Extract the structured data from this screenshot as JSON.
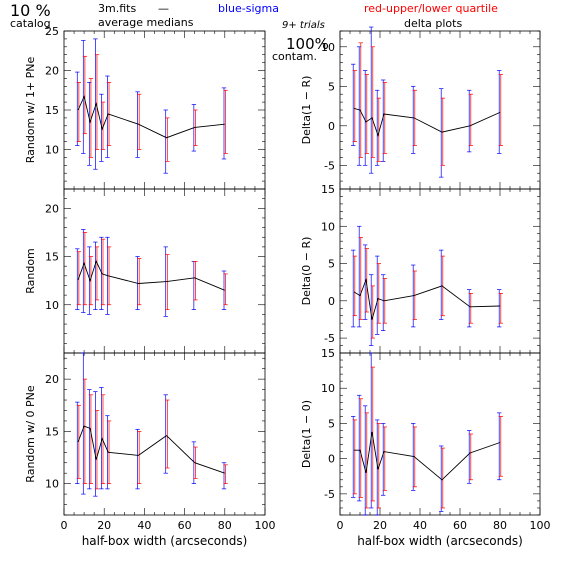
{
  "header": {
    "percent": "10 %",
    "catalog": "catalog",
    "file": "3m.fits",
    "dash": "—",
    "average_medians": "average medians",
    "blue_sigma": "blue-sigma",
    "red_quartile": "red-upper/lower quartile",
    "trials": "9+ trials",
    "delta_plots": "delta plots",
    "contam_pct": "100%",
    "contam": "contam."
  },
  "colors": {
    "line": "#000000",
    "sigma": "#0000ff",
    "quartile": "#ff0000"
  },
  "chart_data": [
    {
      "type": "line",
      "panel": "left-top",
      "xlabel": "",
      "ylabel": "Random w/ 1+ PNe",
      "xlim": [
        0,
        100
      ],
      "ylim": [
        5,
        25
      ],
      "xticks": [],
      "yticks": [
        "10",
        "15",
        "20",
        "25"
      ],
      "x": [
        7,
        10,
        13,
        16,
        19,
        22,
        37,
        51,
        65,
        80
      ],
      "y": [
        15,
        16.7,
        13.5,
        15.8,
        12.6,
        14.5,
        13.2,
        11.5,
        12.8,
        13.2
      ],
      "sigma": [
        [
          10.5,
          19.8
        ],
        [
          9.5,
          23.8
        ],
        [
          8,
          18.5
        ],
        [
          7.5,
          24
        ],
        [
          8.5,
          17
        ],
        [
          9,
          19.3
        ],
        [
          9,
          17.3
        ],
        [
          7,
          15
        ],
        [
          9.8,
          15.7
        ],
        [
          8.8,
          17.8
        ]
      ],
      "quartile": [
        [
          11,
          18.5
        ],
        [
          12,
          21.8
        ],
        [
          9,
          19
        ],
        [
          10,
          22
        ],
        [
          10,
          16
        ],
        [
          10.5,
          18.5
        ],
        [
          10,
          17
        ],
        [
          8.5,
          14
        ],
        [
          10.5,
          15
        ],
        [
          9.5,
          17.5
        ]
      ]
    },
    {
      "type": "line",
      "panel": "right-top",
      "xlabel": "",
      "ylabel": "Delta(1 − R)",
      "xlim": [
        0,
        100
      ],
      "ylim": [
        -8,
        12
      ],
      "xticks": [],
      "yticks": [
        "-5",
        "0",
        "5",
        "10"
      ],
      "x": [
        7,
        10,
        13,
        16,
        19,
        22,
        37,
        51,
        65,
        80
      ],
      "y": [
        2.2,
        2,
        0.5,
        1,
        -1.2,
        1.5,
        1,
        -0.8,
        0,
        1.7
      ],
      "sigma": [
        [
          -2.5,
          7.8
        ],
        [
          -5,
          10
        ],
        [
          -5,
          7
        ],
        [
          -6,
          12.5
        ],
        [
          -5,
          4.5
        ],
        [
          -4.5,
          5.8
        ],
        [
          -3.5,
          5
        ],
        [
          -6.5,
          4.7
        ],
        [
          -3.3,
          4.5
        ],
        [
          -3.5,
          7
        ]
      ],
      "quartile": [
        [
          -2,
          7
        ],
        [
          -4,
          10.5
        ],
        [
          -3.5,
          6.5
        ],
        [
          -4,
          10
        ],
        [
          -4.5,
          3.5
        ],
        [
          -3.5,
          5.5
        ],
        [
          -2.5,
          4.5
        ],
        [
          -5,
          3.5
        ],
        [
          -2.5,
          4
        ],
        [
          -2.5,
          6.5
        ]
      ]
    },
    {
      "type": "line",
      "panel": "left-middle",
      "xlabel": "",
      "ylabel": "Random",
      "xlim": [
        0,
        100
      ],
      "ylim": [
        5,
        22
      ],
      "xticks": [],
      "yticks": [
        "10",
        "15",
        "20"
      ],
      "x": [
        7,
        10,
        13,
        16,
        19,
        22,
        37,
        51,
        65,
        80
      ],
      "y": [
        12.6,
        14.3,
        12.5,
        14.5,
        13.2,
        13,
        12.2,
        12.4,
        12.8,
        11.5
      ],
      "sigma": [
        [
          9.5,
          15.8
        ],
        [
          9.2,
          17.8
        ],
        [
          9,
          16
        ],
        [
          9.5,
          16.5
        ],
        [
          9.5,
          17
        ],
        [
          9,
          17
        ],
        [
          9.5,
          15
        ],
        [
          8.8,
          16
        ],
        [
          9.5,
          14.5
        ],
        [
          9.5,
          13.5
        ]
      ],
      "quartile": [
        [
          10,
          15.5
        ],
        [
          10,
          17.5
        ],
        [
          10,
          15
        ],
        [
          10.5,
          16
        ],
        [
          10,
          16.8
        ],
        [
          10,
          16
        ],
        [
          10,
          14.8
        ],
        [
          9.5,
          15.2
        ],
        [
          10.5,
          14.5
        ],
        [
          10,
          13.2
        ]
      ]
    },
    {
      "type": "line",
      "panel": "right-middle",
      "xlabel": "",
      "ylabel": "Delta(0 − R)",
      "xlim": [
        0,
        100
      ],
      "ylim": [
        -7,
        15
      ],
      "xticks": [],
      "yticks": [
        "-5",
        "0",
        "5",
        "10",
        "15"
      ],
      "x": [
        7,
        10,
        13,
        16,
        19,
        22,
        37,
        51,
        65,
        80
      ],
      "y": [
        1.2,
        0.7,
        2.8,
        -2.5,
        0.3,
        0,
        0.7,
        2,
        -0.8,
        -0.7
      ],
      "sigma": [
        [
          -3.5,
          6.8
        ],
        [
          -3.5,
          10
        ],
        [
          -2.5,
          7.5
        ],
        [
          -6,
          3.5
        ],
        [
          -4.5,
          6
        ],
        [
          -4,
          3.5
        ],
        [
          -3.5,
          4.8
        ],
        [
          -2.5,
          6.8
        ],
        [
          -3.5,
          1.5
        ],
        [
          -3.5,
          1.5
        ]
      ],
      "quartile": [
        [
          -2,
          6
        ],
        [
          -2.5,
          8.5
        ],
        [
          -1.5,
          7
        ],
        [
          -5,
          2
        ],
        [
          -3,
          5
        ],
        [
          -3,
          3
        ],
        [
          -2.5,
          4
        ],
        [
          -2,
          6
        ],
        [
          -3,
          1
        ],
        [
          -3,
          1
        ]
      ]
    },
    {
      "type": "line",
      "panel": "left-bottom",
      "xlabel": "half-box width (arcseconds)",
      "ylabel": "Random w/ 0 PNe",
      "xlim": [
        0,
        100
      ],
      "ylim": [
        7,
        22.5
      ],
      "xticks": [
        "0",
        "20",
        "40",
        "60",
        "80",
        "100"
      ],
      "yticks": [
        "10",
        "15",
        "20"
      ],
      "x": [
        7,
        10,
        13,
        16,
        19,
        22,
        37,
        51,
        65,
        80
      ],
      "y": [
        14,
        15.5,
        15.3,
        12.3,
        14.3,
        13,
        12.7,
        14.6,
        12,
        11
      ],
      "sigma": [
        [
          10,
          17.8
        ],
        [
          9,
          22.5
        ],
        [
          9.5,
          19
        ],
        [
          8.8,
          18.8
        ],
        [
          9.5,
          19.2
        ],
        [
          9.5,
          16.5
        ],
        [
          9.5,
          15.2
        ],
        [
          11,
          18.5
        ],
        [
          10,
          14
        ],
        [
          9.5,
          12
        ]
      ],
      "quartile": [
        [
          10.5,
          17.5
        ],
        [
          10,
          20
        ],
        [
          10,
          18.5
        ],
        [
          9.5,
          17
        ],
        [
          10,
          18.5
        ],
        [
          10,
          16
        ],
        [
          10,
          15
        ],
        [
          11.5,
          18
        ],
        [
          10.5,
          13.5
        ],
        [
          10,
          11.8
        ]
      ]
    },
    {
      "type": "line",
      "panel": "right-bottom",
      "xlabel": "half-box width (arcseconds)",
      "ylabel": "Delta(1 − 0)",
      "xlim": [
        0,
        100
      ],
      "ylim": [
        -8,
        15
      ],
      "xticks": [
        "0",
        "20",
        "40",
        "60",
        "80",
        "100"
      ],
      "yticks": [
        "-5",
        "0",
        "5",
        "10",
        "15"
      ],
      "x": [
        7,
        10,
        13,
        16,
        19,
        22,
        37,
        51,
        65,
        80
      ],
      "y": [
        1.2,
        1.2,
        -2,
        3.8,
        -1.5,
        1,
        0.3,
        -3,
        0.8,
        2.3
      ],
      "sigma": [
        [
          -5.5,
          6
        ],
        [
          -6,
          9
        ],
        [
          -8,
          7.5
        ],
        [
          -7,
          15
        ],
        [
          -8,
          5.5
        ],
        [
          -5.2,
          5
        ],
        [
          -4.5,
          5
        ],
        [
          -7.5,
          1.8
        ],
        [
          -3.5,
          4
        ],
        [
          -3,
          6.5
        ]
      ],
      "quartile": [
        [
          -5,
          5.5
        ],
        [
          -5.5,
          8.5
        ],
        [
          -7,
          6.5
        ],
        [
          -6,
          13
        ],
        [
          -7,
          5
        ],
        [
          -4.5,
          4.5
        ],
        [
          -4,
          4.5
        ],
        [
          -7,
          1.5
        ],
        [
          -3,
          3.5
        ],
        [
          -2.5,
          6
        ]
      ]
    }
  ]
}
